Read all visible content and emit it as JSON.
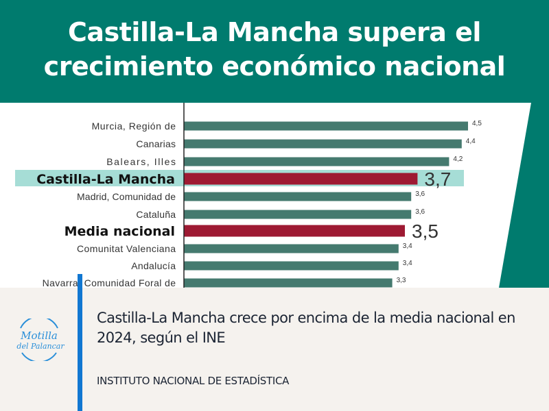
{
  "header": {
    "title_line1": "Castilla-La Mancha supera el",
    "title_line2": "crecimiento económico nacional"
  },
  "footer": {
    "headline": "Castilla-La Mancha crece por encima de la media nacional en 2024, según el INE",
    "source": "INSTITUTO NACIONAL DE ESTADÍSTICA"
  },
  "logo": {
    "text": "Motilla del Palancar"
  },
  "colors": {
    "header": "#007b6e",
    "bar": "#457a6f",
    "highlight_bar": "#9e1a33",
    "highlight_band": "#a6ddd6",
    "accent_blue": "#1177d1"
  },
  "chart_data": {
    "type": "bar",
    "orientation": "horizontal",
    "categories": [
      "Murcia, Región de",
      "Canarias",
      "Balears, Illes",
      "Castilla-La Mancha",
      "Madrid, Comunidad de",
      "Cataluña",
      "Media nacional",
      "Comunitat Valenciana",
      "Andalucía",
      "Navarra, Comunidad Foral de"
    ],
    "values": [
      4.5,
      4.4,
      4.2,
      3.7,
      3.6,
      3.6,
      3.5,
      3.4,
      3.4,
      3.3
    ],
    "labels": [
      "4,5",
      "4,4",
      "4,2",
      "3,7",
      "3,6",
      "3,6",
      "3,5",
      "3,4",
      "3,4",
      "3,3"
    ],
    "highlighted": [
      "Castilla-La Mancha",
      "Media nacional"
    ],
    "xlim": [
      0,
      4.5
    ]
  }
}
